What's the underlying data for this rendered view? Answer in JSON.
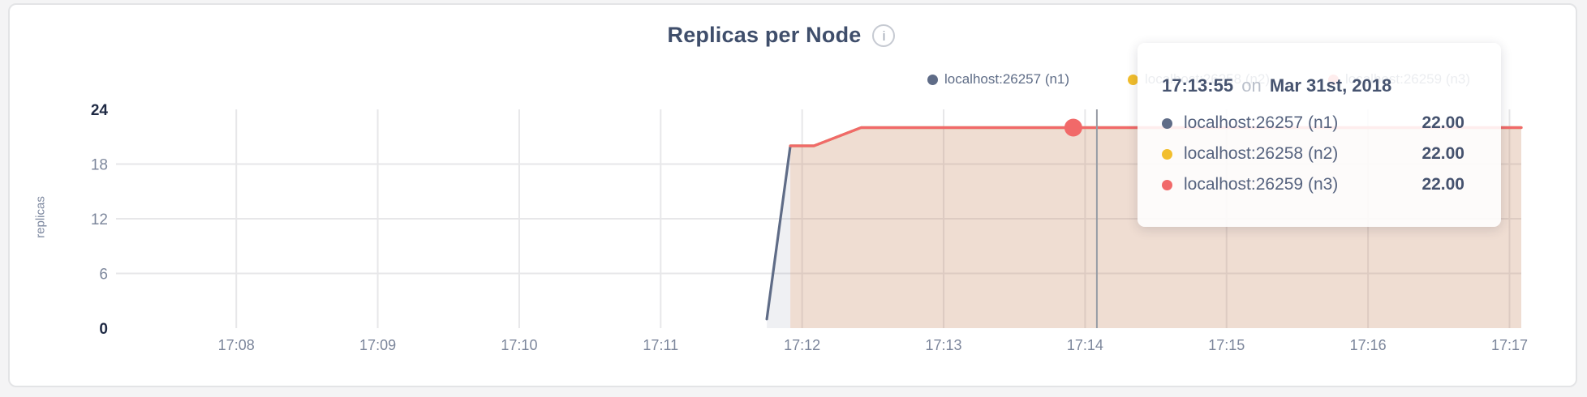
{
  "title": {
    "text": "Replicas per Node",
    "info_icon_glyph": "i"
  },
  "y_axis_label": "replicas",
  "tooltip": {
    "time": "17:13:55",
    "conjunction": "on",
    "date": "Mar 31st, 2018",
    "rows": [
      {
        "name": "localhost:26257 (n1)",
        "value": "22.00",
        "color": "#5F6C87"
      },
      {
        "name": "localhost:26258 (n2)",
        "value": "22.00",
        "color": "#F2BE2C"
      },
      {
        "name": "localhost:26259 (n3)",
        "value": "22.00",
        "color": "#F16969"
      }
    ]
  },
  "hover": {
    "snap_time": "17:13:55",
    "guideline_time": "17:14:05",
    "dot_series_index": 2,
    "dot_value": 22
  },
  "chart_data": {
    "type": "area",
    "title": "Replicas per Node",
    "xlabel": "",
    "ylabel": "replicas",
    "x_domain": [
      "17:07:09",
      "17:17:05"
    ],
    "ylim": [
      0,
      24
    ],
    "grid": true,
    "legend_position": "top-right",
    "fill_opacity": 0.1,
    "x_ticks": [
      {
        "label": "17:08",
        "time": "17:08:00"
      },
      {
        "label": "17:09",
        "time": "17:09:00"
      },
      {
        "label": "17:10",
        "time": "17:10:00"
      },
      {
        "label": "17:11",
        "time": "17:11:00"
      },
      {
        "label": "17:12",
        "time": "17:12:00"
      },
      {
        "label": "17:13",
        "time": "17:13:00"
      },
      {
        "label": "17:14",
        "time": "17:14:00"
      },
      {
        "label": "17:15",
        "time": "17:15:00"
      },
      {
        "label": "17:16",
        "time": "17:16:00"
      },
      {
        "label": "17:17",
        "time": "17:17:00"
      }
    ],
    "y_ticks": [
      {
        "label": "0",
        "value": 0,
        "emphasis": true,
        "gridline": false
      },
      {
        "label": "6",
        "value": 6,
        "emphasis": false,
        "gridline": true
      },
      {
        "label": "12",
        "value": 12,
        "emphasis": false,
        "gridline": true
      },
      {
        "label": "18",
        "value": 18,
        "emphasis": false,
        "gridline": true
      },
      {
        "label": "24",
        "value": 24,
        "emphasis": true,
        "gridline": false
      }
    ],
    "series": [
      {
        "name": "localhost:26257 (n1)",
        "color": "#5F6C87",
        "points": [
          [
            "17:11:45",
            1
          ],
          [
            "17:11:55",
            20
          ],
          [
            "17:12:05",
            20
          ],
          [
            "17:12:25",
            22
          ],
          [
            "17:17:05",
            22
          ]
        ]
      },
      {
        "name": "localhost:26258 (n2)",
        "color": "#F2BE2C",
        "points": [
          [
            "17:11:55",
            20
          ],
          [
            "17:12:05",
            20
          ],
          [
            "17:12:25",
            22
          ],
          [
            "17:17:05",
            22
          ]
        ]
      },
      {
        "name": "localhost:26259 (n3)",
        "color": "#F16969",
        "points": [
          [
            "17:11:55",
            20
          ],
          [
            "17:12:05",
            20
          ],
          [
            "17:12:25",
            22
          ],
          [
            "17:17:05",
            22
          ]
        ]
      }
    ]
  },
  "colors": {
    "axis_tick": "#7D879C",
    "axis_tick_emphasis": "#1F2A44",
    "gridline": "#E7E7E9",
    "guideline": "#979CA5",
    "legend_text": "#5F6D87",
    "title_text": "#3F4E6B"
  }
}
